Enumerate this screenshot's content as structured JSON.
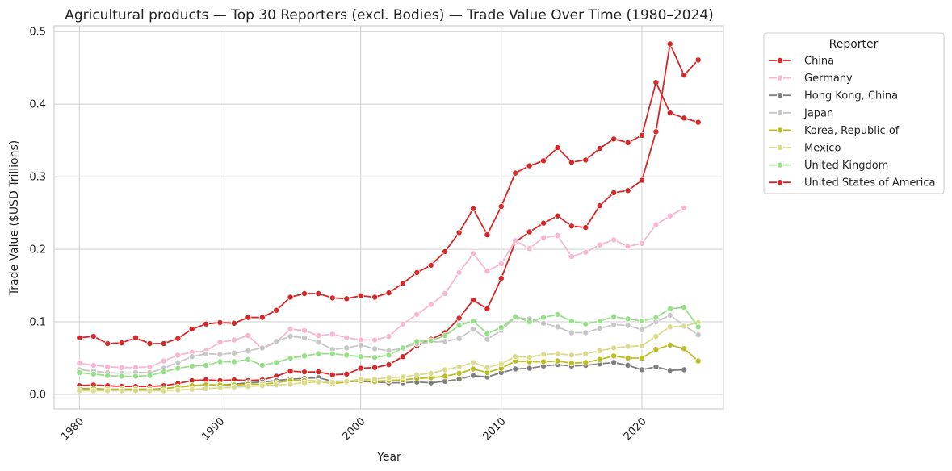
{
  "chart_data": {
    "type": "line",
    "title": "Agricultural products — Top 30 Reporters (excl. Bodies) — Trade Value Over Time (1980–2024)",
    "xlabel": "Year",
    "ylabel": "Trade Value ($USD Trillions)",
    "xlim": [
      1978.2,
      2025.8
    ],
    "ylim": [
      -0.02,
      0.508
    ],
    "xticks": [
      1980,
      1990,
      2000,
      2010,
      2020
    ],
    "yticks": [
      0.0,
      0.1,
      0.2,
      0.3,
      0.4,
      0.5
    ],
    "ytick_labels": [
      "0.0",
      "0.1",
      "0.2",
      "0.3",
      "0.4",
      "0.5"
    ],
    "grid": true,
    "legend": {
      "title": "Reporter",
      "placement": "outside-right"
    },
    "x": [
      1980,
      1981,
      1982,
      1983,
      1984,
      1985,
      1986,
      1987,
      1988,
      1989,
      1990,
      1991,
      1992,
      1993,
      1994,
      1995,
      1996,
      1997,
      1998,
      1999,
      2000,
      2001,
      2002,
      2003,
      2004,
      2005,
      2006,
      2007,
      2008,
      2009,
      2010,
      2011,
      2012,
      2013,
      2014,
      2015,
      2016,
      2017,
      2018,
      2019,
      2020,
      2021,
      2022,
      2023,
      2024
    ],
    "series": [
      {
        "name": "China",
        "color": "#d62728",
        "values": [
          0.012,
          0.013,
          0.012,
          0.011,
          0.011,
          0.011,
          0.012,
          0.015,
          0.019,
          0.02,
          0.019,
          0.02,
          0.019,
          0.02,
          0.025,
          0.032,
          0.031,
          0.031,
          0.027,
          0.028,
          0.036,
          0.037,
          0.041,
          0.052,
          0.067,
          0.076,
          0.085,
          0.105,
          0.13,
          0.118,
          0.16,
          0.21,
          0.224,
          0.236,
          0.246,
          0.232,
          0.23,
          0.26,
          0.278,
          0.281,
          0.295,
          0.362,
          0.483,
          0.44,
          0.461
        ]
      },
      {
        "name": "Germany",
        "color": "#f7b6d2",
        "values": [
          0.043,
          0.04,
          0.038,
          0.037,
          0.037,
          0.038,
          0.046,
          0.054,
          0.058,
          0.06,
          0.072,
          0.075,
          0.081,
          0.063,
          0.072,
          0.09,
          0.088,
          0.081,
          0.083,
          0.078,
          0.075,
          0.075,
          0.08,
          0.097,
          0.11,
          0.124,
          0.139,
          0.168,
          0.194,
          0.17,
          0.18,
          0.212,
          0.201,
          0.216,
          0.219,
          0.19,
          0.196,
          0.206,
          0.213,
          0.204,
          0.208,
          0.234,
          0.246,
          0.257,
          null
        ]
      },
      {
        "name": "Hong Kong, China",
        "color": "#7f7f7f",
        "values": [
          0.008,
          0.008,
          0.007,
          0.007,
          0.007,
          0.007,
          0.008,
          0.01,
          0.012,
          0.013,
          0.013,
          0.014,
          0.016,
          0.017,
          0.019,
          0.021,
          0.022,
          0.023,
          0.018,
          0.018,
          0.018,
          0.017,
          0.016,
          0.016,
          0.017,
          0.016,
          0.018,
          0.021,
          0.026,
          0.024,
          0.03,
          0.035,
          0.036,
          0.039,
          0.041,
          0.039,
          0.04,
          0.042,
          0.044,
          0.04,
          0.034,
          0.038,
          0.033,
          0.034,
          null
        ]
      },
      {
        "name": "Japan",
        "color": "#c7c7c7",
        "values": [
          0.034,
          0.032,
          0.03,
          0.029,
          0.03,
          0.03,
          0.036,
          0.044,
          0.052,
          0.056,
          0.055,
          0.057,
          0.06,
          0.064,
          0.073,
          0.08,
          0.078,
          0.072,
          0.062,
          0.064,
          0.068,
          0.063,
          0.06,
          0.064,
          0.07,
          0.072,
          0.073,
          0.077,
          0.09,
          0.076,
          0.088,
          0.106,
          0.104,
          0.098,
          0.093,
          0.085,
          0.085,
          0.091,
          0.096,
          0.095,
          0.089,
          0.1,
          0.109,
          0.095,
          0.082
        ]
      },
      {
        "name": "Korea, Republic of",
        "color": "#bcbd22",
        "values": [
          0.007,
          0.008,
          0.007,
          0.007,
          0.007,
          0.007,
          0.008,
          0.01,
          0.012,
          0.013,
          0.013,
          0.013,
          0.014,
          0.014,
          0.016,
          0.019,
          0.019,
          0.018,
          0.015,
          0.017,
          0.019,
          0.018,
          0.019,
          0.02,
          0.022,
          0.023,
          0.025,
          0.029,
          0.035,
          0.03,
          0.036,
          0.046,
          0.045,
          0.045,
          0.046,
          0.043,
          0.044,
          0.048,
          0.053,
          0.05,
          0.05,
          0.062,
          0.068,
          0.063,
          0.046
        ]
      },
      {
        "name": "Mexico",
        "color": "#dbdb8d",
        "values": [
          0.005,
          0.005,
          0.005,
          0.005,
          0.005,
          0.005,
          0.005,
          0.006,
          0.007,
          0.008,
          0.009,
          0.01,
          0.011,
          0.012,
          0.013,
          0.014,
          0.016,
          0.017,
          0.017,
          0.018,
          0.021,
          0.021,
          0.023,
          0.024,
          0.027,
          0.029,
          0.034,
          0.038,
          0.044,
          0.037,
          0.042,
          0.052,
          0.051,
          0.055,
          0.056,
          0.054,
          0.056,
          0.06,
          0.064,
          0.066,
          0.067,
          0.08,
          0.093,
          0.094,
          0.099
        ]
      },
      {
        "name": "United Kingdom",
        "color": "#98df8a",
        "values": [
          0.03,
          0.028,
          0.026,
          0.025,
          0.025,
          0.026,
          0.031,
          0.036,
          0.039,
          0.04,
          0.045,
          0.045,
          0.048,
          0.04,
          0.044,
          0.05,
          0.053,
          0.056,
          0.056,
          0.054,
          0.052,
          0.051,
          0.054,
          0.064,
          0.073,
          0.074,
          0.081,
          0.095,
          0.101,
          0.084,
          0.092,
          0.107,
          0.1,
          0.106,
          0.11,
          0.101,
          0.097,
          0.101,
          0.107,
          0.104,
          0.101,
          0.106,
          0.118,
          0.12,
          0.093
        ]
      },
      {
        "name": "United States of America",
        "color": "#d62728",
        "values": [
          0.078,
          0.08,
          0.07,
          0.071,
          0.078,
          0.07,
          0.07,
          0.077,
          0.09,
          0.097,
          0.099,
          0.098,
          0.106,
          0.106,
          0.116,
          0.134,
          0.139,
          0.139,
          0.133,
          0.132,
          0.136,
          0.134,
          0.14,
          0.153,
          0.168,
          0.178,
          0.197,
          0.223,
          0.256,
          0.22,
          0.259,
          0.305,
          0.315,
          0.322,
          0.34,
          0.32,
          0.323,
          0.339,
          0.352,
          0.347,
          0.357,
          0.43,
          0.388,
          0.381,
          0.375
        ]
      }
    ]
  }
}
